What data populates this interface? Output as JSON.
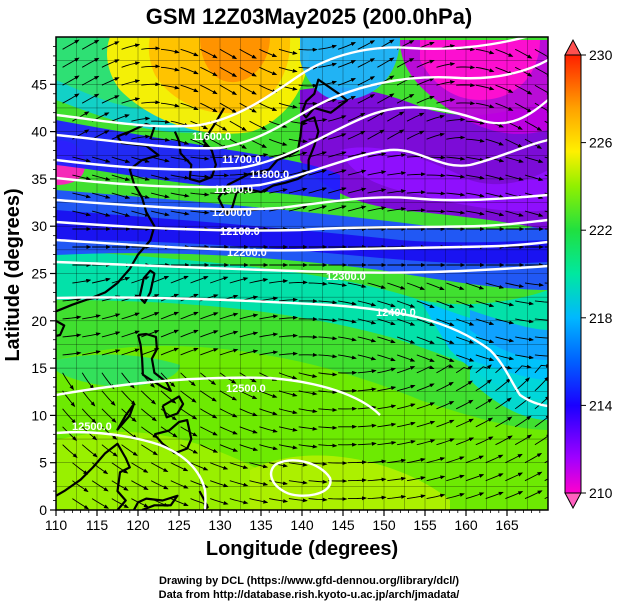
{
  "title": "GSM 12Z03May2025 (200.0hPa)",
  "xlabel": "Longitude (degrees)",
  "ylabel": "Latitude  (degrees)",
  "x_ticks": [
    "110",
    "115",
    "120",
    "125",
    "130",
    "135",
    "140",
    "145",
    "150",
    "155",
    "160",
    "165"
  ],
  "y_ticks": [
    "0",
    "5",
    "10",
    "15",
    "20",
    "25",
    "30",
    "35",
    "40",
    "45"
  ],
  "colorbar": {
    "ticks": [
      "210",
      "214",
      "218",
      "222",
      "226",
      "230"
    ],
    "colors": [
      "#ff00cc",
      "#9a00ff",
      "#1a00ff",
      "#005cff",
      "#00b8ff",
      "#00e8c0",
      "#00f060",
      "#40e000",
      "#b0f000",
      "#fff000",
      "#ffb000",
      "#ff6000",
      "#ff0000"
    ]
  },
  "contour_labels": [
    "11600.0",
    "11700.0",
    "11800.0",
    "11900.0",
    "12000.0",
    "12100.0",
    "12200.0",
    "12300.0",
    "12400.0",
    "12500.0",
    "12500.0"
  ],
  "footer": {
    "line1": "Drawing by DCL (https://www.gfd-dennou.org/library/dcl/)",
    "line2": "Data from http://database.rish.kyoto-u.ac.jp/arch/jmadata/"
  },
  "chart_data": {
    "type": "heatmap",
    "title": "GSM 12Z03May2025 (200.0hPa)",
    "xlabel": "Longitude (degrees)",
    "ylabel": "Latitude  (degrees)",
    "xlim": [
      110,
      170
    ],
    "ylim": [
      0,
      50
    ],
    "colorbar_range": [
      210,
      230
    ],
    "contour_levels": [
      11600,
      11700,
      11800,
      11900,
      12000,
      12100,
      12200,
      12300,
      12400,
      12500
    ]
  }
}
